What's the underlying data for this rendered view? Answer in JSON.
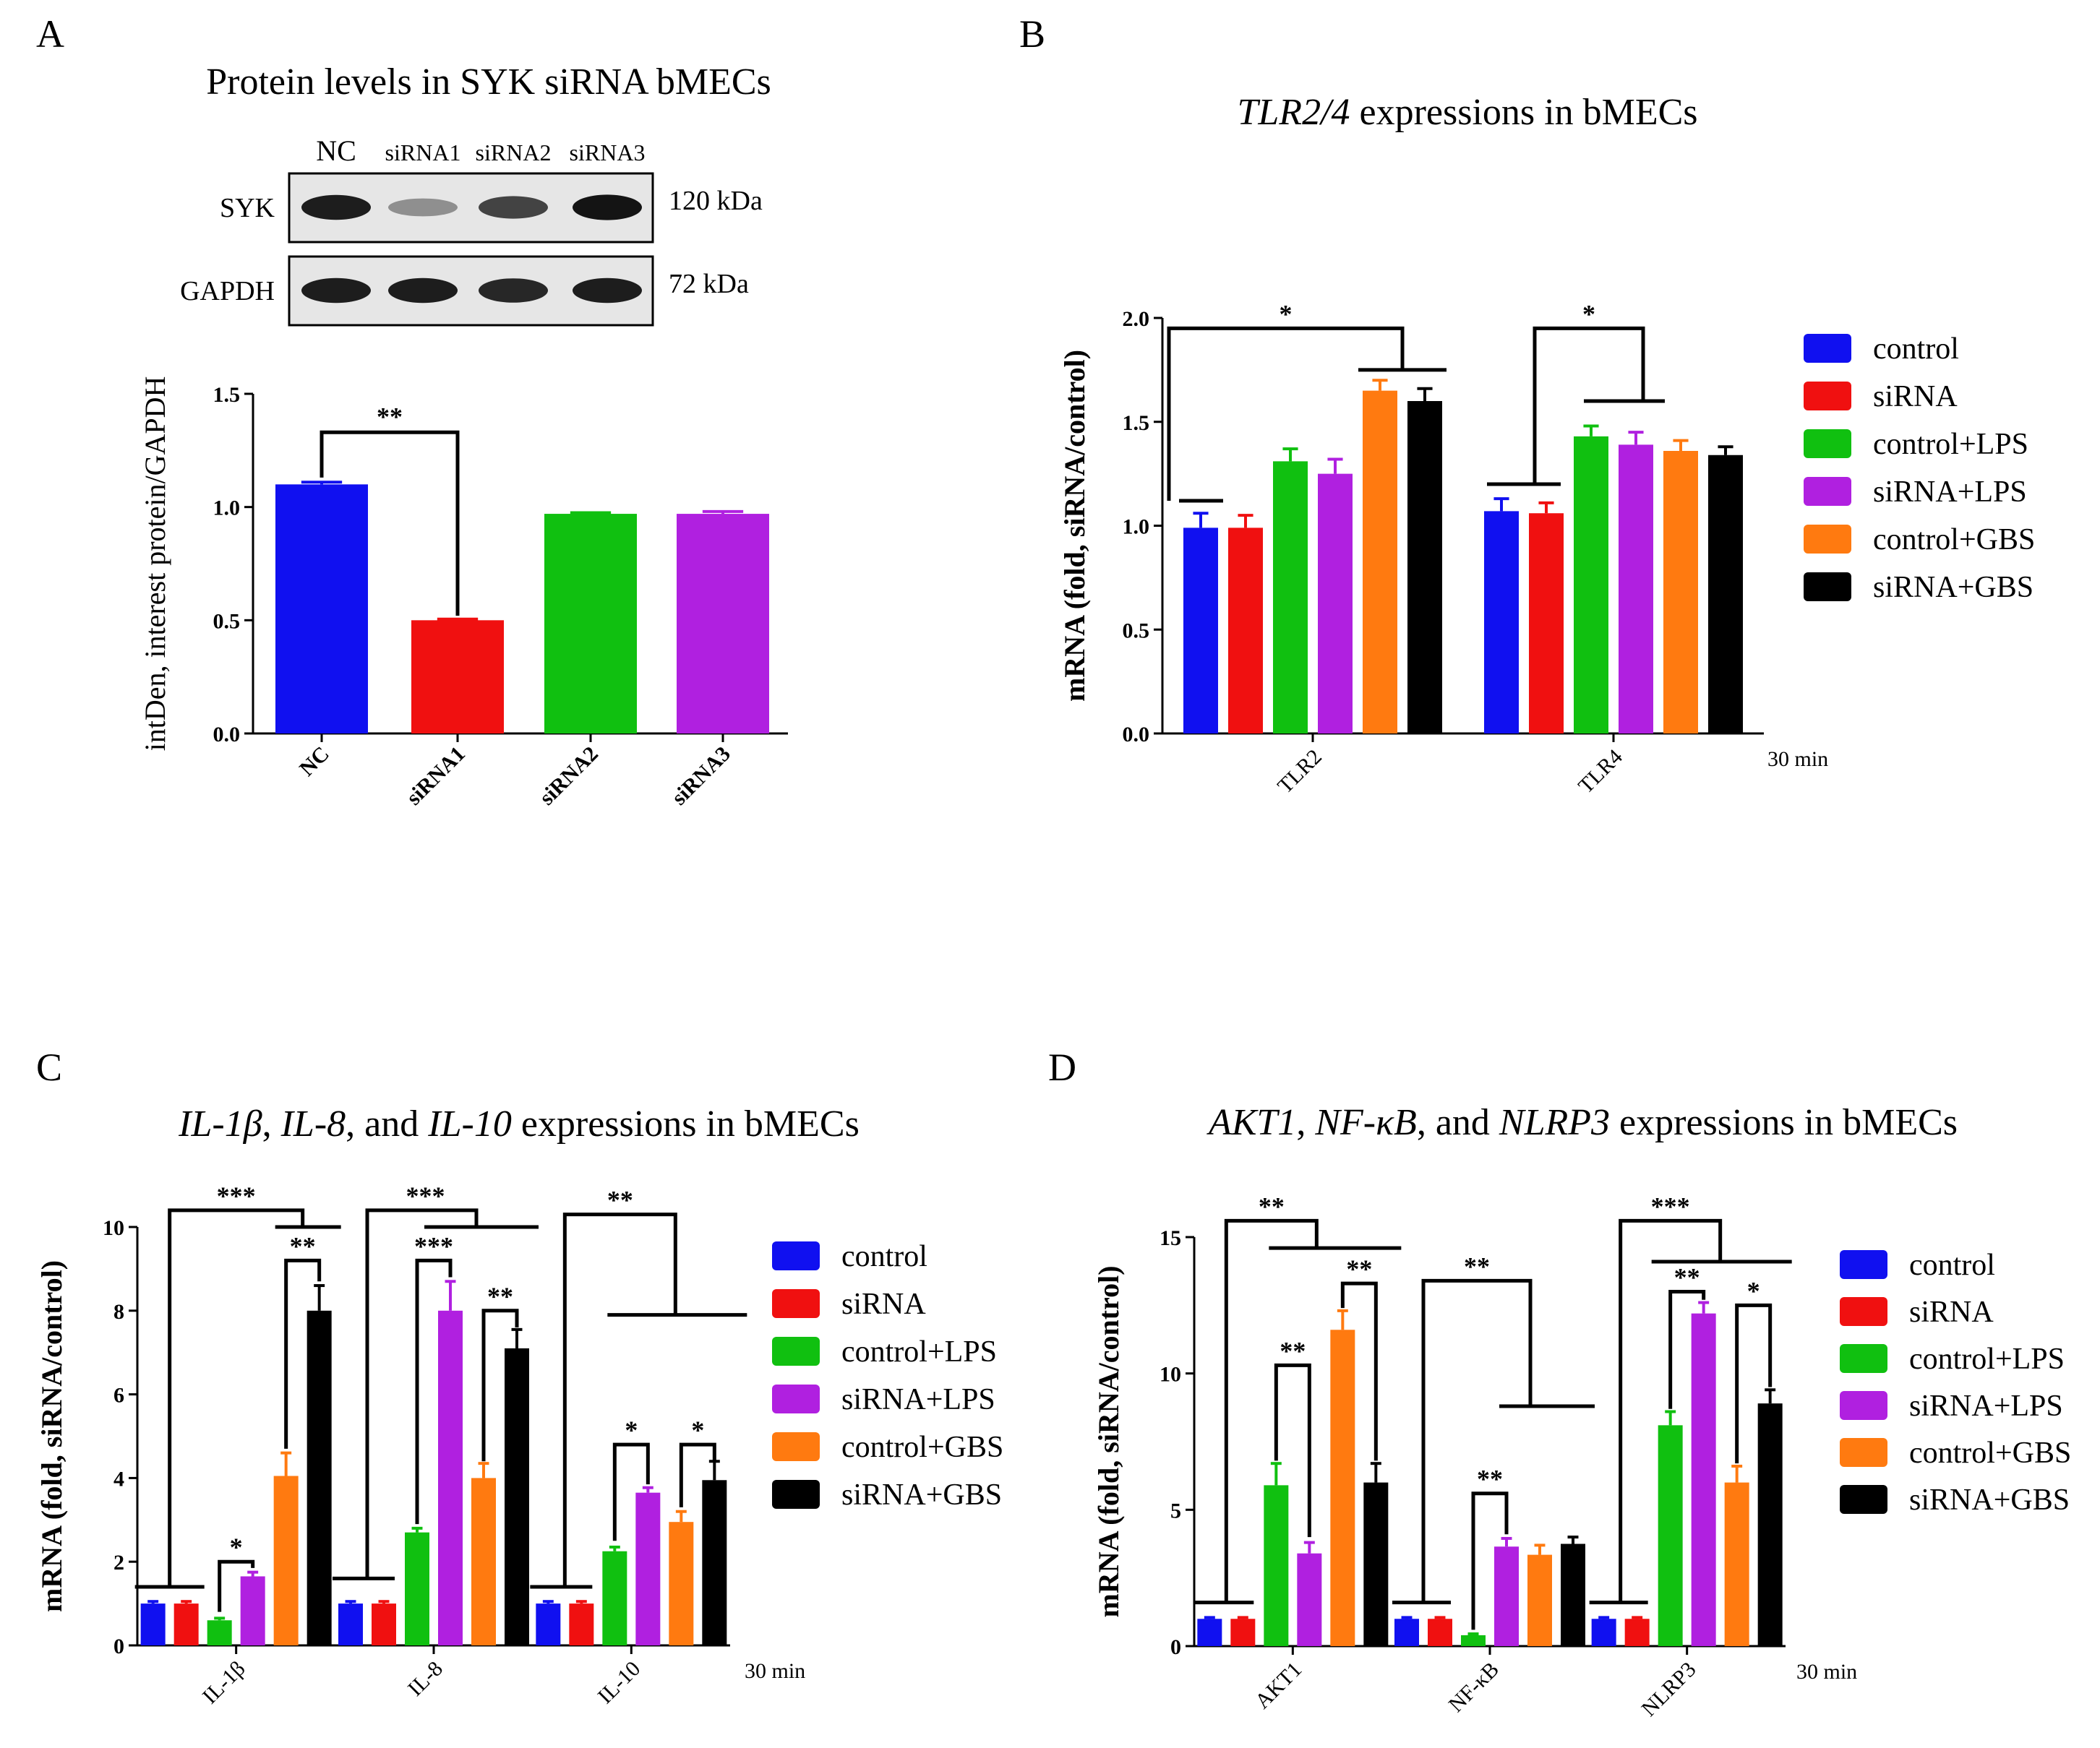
{
  "colors": {
    "control": "#1010f0",
    "siRNA": "#f01010",
    "control+LPS": "#10c010",
    "siRNA+LPS": "#b020e0",
    "control+GBS": "#ff7a10",
    "siRNA+GBS": "#000000"
  },
  "legend": [
    "control",
    "siRNA",
    "control+LPS",
    "siRNA+LPS",
    "control+GBS",
    "siRNA+GBS"
  ],
  "panels": {
    "A": {
      "letter": "A",
      "title": "Protein levels in SYK siRNA bMECs",
      "blot": {
        "lanes": [
          "NC",
          "siRNA1",
          "siRNA2",
          "siRNA3"
        ],
        "rows": [
          {
            "label": "SYK",
            "kda": "120 kDa",
            "intensity": [
              0.9,
              0.3,
              0.7,
              0.95
            ]
          },
          {
            "label": "GAPDH",
            "kda": "72 kDa",
            "intensity": [
              0.9,
              0.9,
              0.85,
              0.9
            ]
          }
        ]
      }
    },
    "B": {
      "letter": "B",
      "title_italic": "TLR2/4",
      "title_rest": " expressions in bMECs"
    },
    "C": {
      "letter": "C"
    },
    "D": {
      "letter": "D"
    }
  },
  "chart_data": [
    {
      "id": "A",
      "type": "bar",
      "title": "Protein levels in SYK siRNA bMECs",
      "ylabel": "intDen, interest protein/GAPDH",
      "xlabel": "",
      "ylim": [
        0,
        1.5
      ],
      "yticks": [
        "0.0",
        "0.5",
        "1.0",
        "1.5"
      ],
      "categories": [
        "NC",
        "siRNA1",
        "siRNA2",
        "siRNA3"
      ],
      "values": [
        1.1,
        0.5,
        0.97,
        0.97
      ],
      "errors": [
        0.01,
        0.005,
        0.005,
        0.01
      ],
      "bar_colors": [
        "#1010f0",
        "#f01010",
        "#10c010",
        "#b020e0"
      ],
      "significance": [
        {
          "label": "**",
          "between": [
            "NC",
            "siRNA1"
          ]
        }
      ]
    },
    {
      "id": "B",
      "type": "bar",
      "title": "TLR2/4 expressions in bMECs",
      "ylabel": "mRNA (fold, siRNA/control)",
      "time_label": "30 min",
      "ylim": [
        0,
        2.0
      ],
      "yticks": [
        "0.0",
        "0.5",
        "1.0",
        "1.5",
        "2.0"
      ],
      "categories": [
        "TLR2",
        "TLR4"
      ],
      "series": [
        {
          "name": "control",
          "values": [
            0.99,
            1.07
          ],
          "errors": [
            0.07,
            0.06
          ]
        },
        {
          "name": "siRNA",
          "values": [
            0.99,
            1.06
          ],
          "errors": [
            0.06,
            0.05
          ]
        },
        {
          "name": "control+LPS",
          "values": [
            1.31,
            1.43
          ],
          "errors": [
            0.06,
            0.05
          ]
        },
        {
          "name": "siRNA+LPS",
          "values": [
            1.25,
            1.39
          ],
          "errors": [
            0.07,
            0.06
          ]
        },
        {
          "name": "control+GBS",
          "values": [
            1.65,
            1.36
          ],
          "errors": [
            0.05,
            0.05
          ]
        },
        {
          "name": "siRNA+GBS",
          "values": [
            1.6,
            1.34
          ],
          "errors": [
            0.06,
            0.04
          ]
        }
      ],
      "significance": [
        {
          "label": "*",
          "group": "TLR2"
        },
        {
          "label": "*",
          "group": "TLR4"
        }
      ]
    },
    {
      "id": "C",
      "type": "bar",
      "title": "IL-1β, IL-8, and IL-10 expressions in bMECs",
      "ylabel": "mRNA (fold, siRNA/control)",
      "time_label": "30 min",
      "ylim": [
        0,
        10
      ],
      "yticks": [
        "0",
        "2",
        "4",
        "6",
        "8",
        "10"
      ],
      "categories": [
        "IL-1β",
        "IL-8",
        "IL-10"
      ],
      "series": [
        {
          "name": "control",
          "values": [
            1.0,
            1.0,
            1.0
          ],
          "errors": [
            0.05,
            0.05,
            0.05
          ]
        },
        {
          "name": "siRNA",
          "values": [
            1.0,
            1.0,
            1.0
          ],
          "errors": [
            0.05,
            0.05,
            0.05
          ]
        },
        {
          "name": "control+LPS",
          "values": [
            0.6,
            2.7,
            2.25
          ],
          "errors": [
            0.05,
            0.1,
            0.1
          ]
        },
        {
          "name": "siRNA+LPS",
          "values": [
            1.65,
            8.0,
            3.65
          ],
          "errors": [
            0.1,
            0.7,
            0.12
          ]
        },
        {
          "name": "control+GBS",
          "values": [
            4.05,
            4.0,
            2.95
          ],
          "errors": [
            0.55,
            0.35,
            0.25
          ]
        },
        {
          "name": "siRNA+GBS",
          "values": [
            8.0,
            7.1,
            3.95
          ],
          "errors": [
            0.6,
            0.45,
            0.45
          ]
        }
      ],
      "significance": [
        {
          "label": "***",
          "group": "IL-1β",
          "type": "overall"
        },
        {
          "label": "*",
          "group": "IL-1β",
          "between": [
            "control+LPS",
            "siRNA+LPS"
          ]
        },
        {
          "label": "**",
          "group": "IL-1β",
          "between": [
            "control+GBS",
            "siRNA+GBS"
          ]
        },
        {
          "label": "***",
          "group": "IL-8",
          "type": "overall"
        },
        {
          "label": "***",
          "group": "IL-8",
          "between": [
            "control+LPS",
            "siRNA+LPS"
          ]
        },
        {
          "label": "**",
          "group": "IL-8",
          "between": [
            "control+GBS",
            "siRNA+GBS"
          ]
        },
        {
          "label": "**",
          "group": "IL-10",
          "type": "overall"
        },
        {
          "label": "*",
          "group": "IL-10",
          "between": [
            "control+LPS",
            "siRNA+LPS"
          ]
        },
        {
          "label": "*",
          "group": "IL-10",
          "between": [
            "control+GBS",
            "siRNA+GBS"
          ]
        }
      ]
    },
    {
      "id": "D",
      "type": "bar",
      "title": "AKT1, NF-κB, and NLRP3 expressions in bMECs",
      "ylabel": "mRNA (fold, siRNA/control)",
      "time_label": "30 min",
      "ylim": [
        0,
        15
      ],
      "yticks": [
        "0",
        "5",
        "10",
        "15"
      ],
      "categories": [
        "AKT1",
        "NF-κB",
        "NLRP3"
      ],
      "series": [
        {
          "name": "control",
          "values": [
            1.0,
            1.0,
            1.0
          ],
          "errors": [
            0.05,
            0.05,
            0.05
          ]
        },
        {
          "name": "siRNA",
          "values": [
            1.0,
            1.0,
            1.0
          ],
          "errors": [
            0.05,
            0.05,
            0.05
          ]
        },
        {
          "name": "control+LPS",
          "values": [
            5.9,
            0.4,
            8.1
          ],
          "errors": [
            0.8,
            0.05,
            0.5
          ]
        },
        {
          "name": "siRNA+LPS",
          "values": [
            3.4,
            3.65,
            12.2
          ],
          "errors": [
            0.4,
            0.3,
            0.4
          ]
        },
        {
          "name": "control+GBS",
          "values": [
            11.6,
            3.35,
            6.0
          ],
          "errors": [
            0.7,
            0.35,
            0.6
          ]
        },
        {
          "name": "siRNA+GBS",
          "values": [
            6.0,
            3.75,
            8.9
          ],
          "errors": [
            0.7,
            0.25,
            0.5
          ]
        }
      ],
      "significance": [
        {
          "label": "**",
          "group": "AKT1",
          "type": "overall"
        },
        {
          "label": "**",
          "group": "AKT1",
          "between": [
            "control+LPS",
            "siRNA+LPS"
          ]
        },
        {
          "label": "**",
          "group": "AKT1",
          "between": [
            "control+GBS",
            "siRNA+GBS"
          ]
        },
        {
          "label": "**",
          "group": "NF-κB",
          "type": "overall"
        },
        {
          "label": "**",
          "group": "NF-κB",
          "between": [
            "control+LPS",
            "siRNA+LPS"
          ]
        },
        {
          "label": "***",
          "group": "NLRP3",
          "type": "overall"
        },
        {
          "label": "**",
          "group": "NLRP3",
          "between": [
            "control+LPS",
            "siRNA+LPS"
          ]
        },
        {
          "label": "*",
          "group": "NLRP3",
          "between": [
            "control+GBS",
            "siRNA+GBS"
          ]
        }
      ]
    }
  ]
}
